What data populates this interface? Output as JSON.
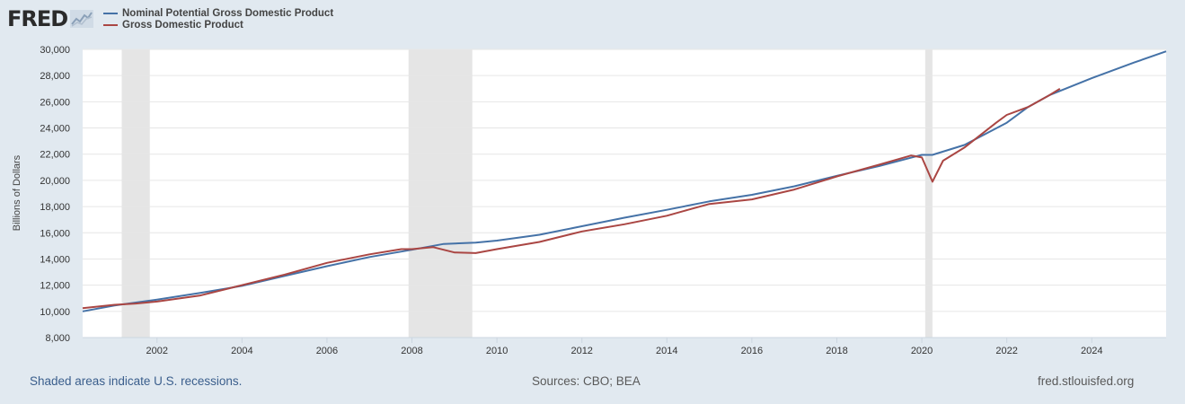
{
  "brand": {
    "logo_text": "FRED",
    "logo_icon": "line-chart-icon",
    "accent_color": "#a7b7c8"
  },
  "footer": {
    "recession_note": "Shaded areas indicate U.S. recessions.",
    "sources": "Sources: CBO; BEA",
    "site": "fred.stlouisfed.org"
  },
  "chart_data": {
    "type": "line",
    "ylabel": "Billions of Dollars",
    "xlim": [
      2000.25,
      2025.75
    ],
    "ylim": [
      8000,
      30000
    ],
    "yticks": [
      8000,
      10000,
      12000,
      14000,
      16000,
      18000,
      20000,
      22000,
      24000,
      26000,
      28000,
      30000
    ],
    "ytick_labels": [
      "8,000",
      "10,000",
      "12,000",
      "14,000",
      "16,000",
      "18,000",
      "20,000",
      "22,000",
      "24,000",
      "26,000",
      "28,000",
      "30,000"
    ],
    "xticks": [
      2002,
      2004,
      2006,
      2008,
      2010,
      2012,
      2014,
      2016,
      2018,
      2020,
      2022,
      2024
    ],
    "xtick_labels": [
      "2002",
      "2004",
      "2006",
      "2008",
      "2010",
      "2012",
      "2014",
      "2016",
      "2018",
      "2020",
      "2022",
      "2024"
    ],
    "grid": "horizontal",
    "legend_position": "top-left",
    "recessions": [
      [
        2001.17,
        2001.83
      ],
      [
        2007.92,
        2009.42
      ],
      [
        2020.08,
        2020.25
      ]
    ],
    "series": [
      {
        "name": "Nominal Potential Gross Domestic Product",
        "color": "#4572a7",
        "points": [
          [
            2000.25,
            10000
          ],
          [
            2001.0,
            10450
          ],
          [
            2002.0,
            10900
          ],
          [
            2003.0,
            11400
          ],
          [
            2004.0,
            11950
          ],
          [
            2005.0,
            12700
          ],
          [
            2006.0,
            13450
          ],
          [
            2007.0,
            14150
          ],
          [
            2008.0,
            14700
          ],
          [
            2008.75,
            15150
          ],
          [
            2009.5,
            15250
          ],
          [
            2010.0,
            15400
          ],
          [
            2011.0,
            15850
          ],
          [
            2012.0,
            16500
          ],
          [
            2013.0,
            17150
          ],
          [
            2014.0,
            17750
          ],
          [
            2015.0,
            18400
          ],
          [
            2016.0,
            18900
          ],
          [
            2017.0,
            19550
          ],
          [
            2018.0,
            20350
          ],
          [
            2019.0,
            21100
          ],
          [
            2020.0,
            21950
          ],
          [
            2020.25,
            21950
          ],
          [
            2021.0,
            22700
          ],
          [
            2022.0,
            24400
          ],
          [
            2022.5,
            25600
          ],
          [
            2023.0,
            26500
          ],
          [
            2024.0,
            27800
          ],
          [
            2025.0,
            29000
          ],
          [
            2025.75,
            29850
          ]
        ]
      },
      {
        "name": "Gross Domestic Product",
        "color": "#aa4643",
        "points": [
          [
            2000.25,
            10250
          ],
          [
            2001.0,
            10500
          ],
          [
            2001.5,
            10600
          ],
          [
            2002.0,
            10750
          ],
          [
            2003.0,
            11200
          ],
          [
            2004.0,
            12000
          ],
          [
            2005.0,
            12800
          ],
          [
            2006.0,
            13700
          ],
          [
            2007.0,
            14350
          ],
          [
            2007.75,
            14750
          ],
          [
            2008.0,
            14750
          ],
          [
            2008.5,
            14900
          ],
          [
            2009.0,
            14500
          ],
          [
            2009.5,
            14450
          ],
          [
            2010.0,
            14750
          ],
          [
            2011.0,
            15300
          ],
          [
            2012.0,
            16100
          ],
          [
            2013.0,
            16650
          ],
          [
            2014.0,
            17300
          ],
          [
            2014.5,
            17750
          ],
          [
            2015.0,
            18200
          ],
          [
            2016.0,
            18550
          ],
          [
            2017.0,
            19300
          ],
          [
            2018.0,
            20300
          ],
          [
            2019.0,
            21200
          ],
          [
            2019.75,
            21900
          ],
          [
            2020.0,
            21750
          ],
          [
            2020.25,
            19900
          ],
          [
            2020.5,
            21500
          ],
          [
            2021.0,
            22500
          ],
          [
            2021.75,
            24400
          ],
          [
            2022.0,
            25000
          ],
          [
            2022.5,
            25600
          ],
          [
            2023.0,
            26500
          ],
          [
            2023.25,
            27000
          ]
        ]
      }
    ]
  }
}
